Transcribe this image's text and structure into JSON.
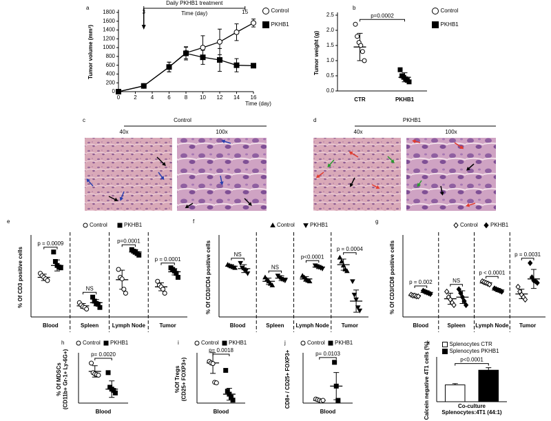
{
  "chart_data": [
    {
      "panel": "a",
      "type": "line",
      "ylabel": "Tumor volume (mm³)",
      "xlabel": "Time (day)",
      "x": [
        0,
        3,
        6,
        8,
        10,
        12,
        14,
        16
      ],
      "xlim": [
        0,
        16
      ],
      "xticks": [
        0,
        2,
        4,
        6,
        8,
        10,
        12,
        14,
        16
      ],
      "ylim": [
        0,
        1800
      ],
      "yticks": [
        0,
        200,
        400,
        600,
        800,
        1000,
        1200,
        1400,
        1600,
        1800
      ],
      "treatment": {
        "label": "Daily PKHB1 treatment",
        "axis_label": "Time (day)",
        "start": 3,
        "end": 15
      },
      "series": [
        {
          "name": "Control",
          "marker": "circle-open",
          "color": "#000000",
          "values": [
            0,
            130,
            560,
            880,
            1000,
            1130,
            1350,
            1560
          ],
          "errors": [
            0,
            40,
            110,
            130,
            270,
            290,
            190,
            90
          ]
        },
        {
          "name": "PKHB1",
          "marker": "square",
          "color": "#000000",
          "values": [
            0,
            130,
            560,
            870,
            780,
            720,
            600,
            590
          ],
          "errors": [
            0,
            40,
            110,
            150,
            160,
            260,
            150,
            30
          ]
        }
      ]
    },
    {
      "panel": "b",
      "type": "dot",
      "ylabel": "Tumor weight (g)",
      "categories": [
        "CTR",
        "PKHB1"
      ],
      "grouped": false,
      "ylim": [
        0,
        2.5
      ],
      "yticks": [
        {
          "value": 0,
          "label": "0.0"
        },
        0.5,
        {
          "value": 1,
          "label": "1.0"
        },
        1.5,
        {
          "value": 2,
          "label": "2.0"
        },
        2.5
      ],
      "pvalue": "p=0.0002",
      "series": [
        {
          "name": "Control",
          "marker": "circle-open",
          "color": "#000000",
          "points": [
            [
              2.2,
              1.8,
              1.6,
              1.5,
              1.3,
              1.0
            ],
            null
          ],
          "values": [
            1.45,
            null
          ],
          "errors": [
            0.45,
            null
          ]
        },
        {
          "name": "PKHB1",
          "marker": "square",
          "color": "#000000",
          "points": [
            null,
            [
              0.7,
              0.5,
              0.45,
              0.4,
              0.35,
              0.3
            ]
          ],
          "values": [
            null,
            0.45
          ],
          "errors": [
            null,
            0.15
          ]
        }
      ]
    },
    {
      "panel": "e",
      "type": "dot",
      "ylabel": "% Of CD3 positive cells",
      "categories": [
        "Blood",
        "Spleen",
        "Lymph Node",
        "Tumor"
      ],
      "grouped": true,
      "dividers": true,
      "ylim": [
        0,
        100
      ],
      "pvalues": [
        "p = 0.0009",
        "NS",
        "p=0.0001",
        "p = 0.0001"
      ],
      "series": [
        {
          "name": "Control",
          "marker": "circle-open",
          "color": "#000000",
          "points": [
            [
              55,
              52,
              50,
              48,
              46
            ],
            [
              18,
              15,
              13,
              12,
              10
            ],
            [
              60,
              50,
              48,
              35,
              30
            ],
            [
              45,
              40,
              38,
              35,
              30
            ]
          ],
          "values": [
            50,
            14,
            47,
            38
          ],
          "errors": [
            4,
            3,
            12,
            5
          ]
        },
        {
          "name": "PKHB1",
          "marker": "square",
          "color": "#000000",
          "points": [
            [
              82,
              70,
              65,
              63,
              62
            ],
            [
              25,
              20,
              17,
              16,
              12
            ],
            [
              85,
              83,
              82,
              80,
              78
            ],
            [
              62,
              60,
              58,
              55,
              50
            ]
          ],
          "values": [
            65,
            18,
            82,
            57
          ],
          "errors": [
            7,
            4,
            3,
            4
          ]
        }
      ]
    },
    {
      "panel": "f",
      "type": "dot",
      "ylabel": "% Of CD3/CD4 positive cells",
      "categories": [
        "Blood",
        "Spleen",
        "Lymph Node",
        "Tumor"
      ],
      "grouped": true,
      "dividers": true,
      "ylim": [
        0,
        100
      ],
      "pvalues": [
        "NS",
        "NS",
        "p<0.0001",
        "p = 0.0004"
      ],
      "series": [
        {
          "name": "Control",
          "marker": "triangle-up",
          "color": "#000000",
          "points": [
            [
              66,
              65,
              64,
              63,
              62
            ],
            [
              50,
              47,
              45,
              42,
              40
            ],
            [
              52,
              50,
              48,
              46,
              45
            ],
            [
              75,
              70,
              65,
              60,
              58
            ]
          ],
          "values": [
            64,
            45,
            48,
            66
          ],
          "errors": [
            2,
            4,
            3,
            7
          ]
        },
        {
          "name": "PKHB1",
          "marker": "triangle-down",
          "color": "#000000",
          "points": [
            [
              68,
              62,
              60,
              58,
              55
            ],
            [
              52,
              50,
              48,
              47,
              46
            ],
            [
              65,
              64,
              63,
              62,
              61
            ],
            [
              45,
              28,
              22,
              12,
              8
            ]
          ],
          "values": [
            61,
            49,
            63,
            20
          ],
          "errors": [
            5,
            3,
            2,
            14
          ]
        }
      ]
    },
    {
      "panel": "g",
      "type": "dot",
      "ylabel": "% Of CD3/CD8 positive cells",
      "categories": [
        "Blood",
        "Spleen",
        "Lymph Node",
        "Tumor"
      ],
      "grouped": true,
      "dividers": true,
      "ylim": [
        0,
        100
      ],
      "pvalues": [
        "p = 0.002",
        "NS",
        "p < 0.0001",
        "p = 0.0031"
      ],
      "series": [
        {
          "name": "Control",
          "marker": "diamond-open",
          "color": "#000000",
          "points": [
            [
              28,
              27,
              27,
              26,
              26
            ],
            [
              32,
              25,
              22,
              18,
              15
            ],
            [
              45,
              44,
              43,
              42,
              41
            ],
            [
              38,
              32,
              28,
              25,
              22
            ]
          ],
          "values": [
            27,
            23,
            43,
            29
          ],
          "errors": [
            1,
            7,
            2,
            6
          ]
        },
        {
          "name": "PKHB1",
          "marker": "diamond",
          "color": "#000000",
          "points": [
            [
              33,
              32,
              31,
              30,
              29
            ],
            [
              35,
              30,
              25,
              20,
              15
            ],
            [
              36,
              35,
              34,
              33,
              32
            ],
            [
              68,
              50,
              46,
              45,
              43
            ]
          ],
          "values": [
            31,
            25,
            34,
            48
          ],
          "errors": [
            2,
            8,
            2,
            12
          ]
        }
      ]
    },
    {
      "panel": "h",
      "type": "dot",
      "ylabel": [
        "% Of MDSCs",
        "(CD11b+ Gr-1+ Ly-6G+)"
      ],
      "categories": [
        "Blood"
      ],
      "grouped": true,
      "ylim": [
        0,
        75
      ],
      "pvalue": "p= 0.0020",
      "series": [
        {
          "name": "Control",
          "marker": "circle-open",
          "color": "#000000",
          "points": [
            [
              63,
              48,
              46,
              45,
              44
            ]
          ],
          "values": [
            50
          ],
          "errors": [
            9
          ]
        },
        {
          "name": "PKHB1",
          "marker": "square",
          "color": "#000000",
          "points": [
            [
              48,
              25,
              22,
              20,
              16
            ]
          ],
          "values": [
            22
          ],
          "errors": [
            13
          ]
        }
      ]
    },
    {
      "panel": "i",
      "type": "dot",
      "ylabel": [
        "%Of Tregs",
        "(CD25+ FOXP3+)"
      ],
      "categories": [
        "Blood"
      ],
      "grouped": true,
      "ylim": [
        0,
        16
      ],
      "pvalue": "p= 0.0018",
      "series": [
        {
          "name": "Control",
          "marker": "circle-open",
          "color": "#000000",
          "points": [
            [
              14,
              13.5,
              13.3,
              7,
              6.8
            ]
          ],
          "values": [
            13.5
          ],
          "errors": [
            3.5
          ]
        },
        {
          "name": "PKHB1",
          "marker": "square",
          "color": "#000000",
          "points": [
            [
              11,
              4,
              3,
              2,
              1
            ]
          ],
          "values": [
            3
          ],
          "errors": [
            2
          ]
        }
      ]
    },
    {
      "panel": "j",
      "type": "dot",
      "ylabel": [
        "CD8+ / CD25+ FOXP3+"
      ],
      "categories": [
        "Blood"
      ],
      "grouped": true,
      "ylim": [
        0,
        35
      ],
      "pvalue": "p= 0.0103",
      "series": [
        {
          "name": "Control",
          "marker": "circle-open",
          "color": "#000000",
          "points": [
            [
              3,
              2.5,
              2,
              1.5,
              2
            ]
          ],
          "values": [
            2
          ],
          "errors": [
            1
          ]
        },
        {
          "name": "PKHB1",
          "marker": "square",
          "color": "#000000",
          "points": [
            [
              30,
              12.5,
              2
            ]
          ],
          "values": [
            12.5
          ],
          "errors": [
            10
          ]
        }
      ]
    },
    {
      "panel": "k",
      "type": "bar",
      "ylabel": "Calcein negative 4T1 cells (%)",
      "categories": [
        "Co-culture"
      ],
      "xlabel": "Splenocytes:4T1 (44:1)",
      "ylim": [
        0,
        100
      ],
      "pvalue": "p<0.0001",
      "series": [
        {
          "name": "Splenocytes CTR",
          "color": "#ffffff",
          "values": [
            40
          ],
          "errors": [
            3
          ]
        },
        {
          "name": "Splenocytes PKHB1",
          "color": "#000000",
          "values": [
            75
          ],
          "errors": [
            6
          ]
        }
      ]
    }
  ],
  "images": [
    {
      "panel": "c",
      "title": "Control",
      "magnifications": [
        "40x",
        "100x"
      ]
    },
    {
      "panel": "d",
      "title": "PKHB1",
      "magnifications": [
        "40x",
        "100x"
      ]
    }
  ]
}
